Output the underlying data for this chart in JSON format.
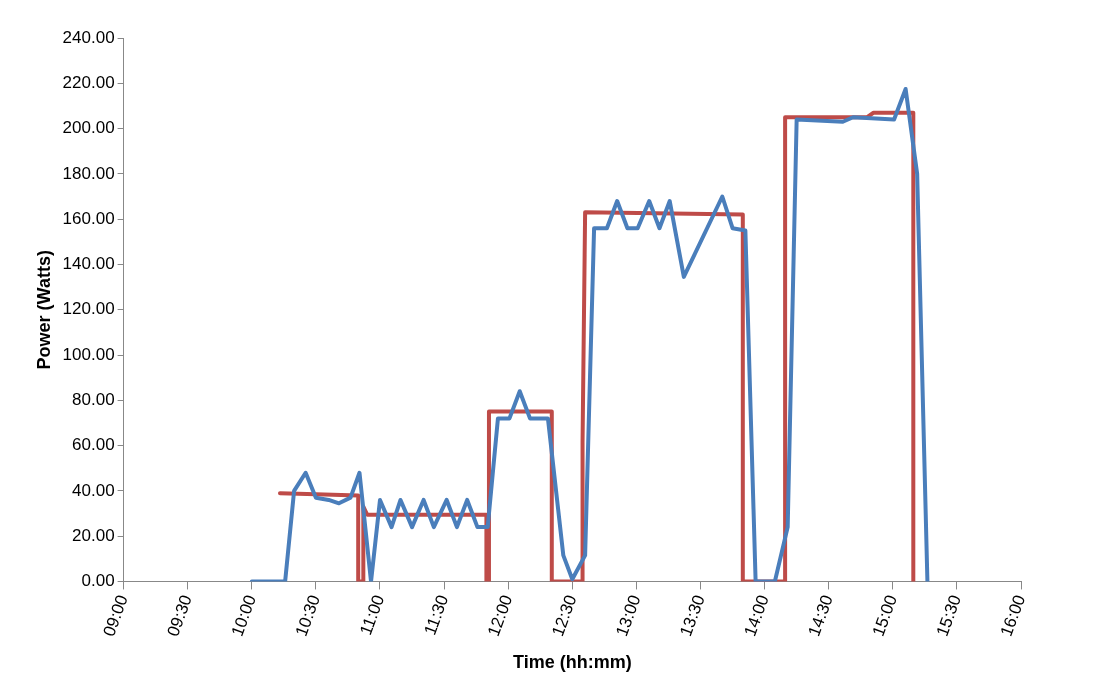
{
  "chart_data": {
    "type": "line",
    "xlabel": "Time (hh:mm)",
    "ylabel": "Power (Watts)",
    "xlim": [
      9,
      16
    ],
    "ylim": [
      0,
      240
    ],
    "xticks": [
      {
        "value": 9,
        "label": "09:00"
      },
      {
        "value": 9.5,
        "label": "09:30"
      },
      {
        "value": 10,
        "label": "10:00"
      },
      {
        "value": 10.5,
        "label": "10:30"
      },
      {
        "value": 11,
        "label": "11:00"
      },
      {
        "value": 11.5,
        "label": "11:30"
      },
      {
        "value": 12,
        "label": "12:00"
      },
      {
        "value": 12.5,
        "label": "12:30"
      },
      {
        "value": 13,
        "label": "13:00"
      },
      {
        "value": 13.5,
        "label": "13:30"
      },
      {
        "value": 14,
        "label": "14:00"
      },
      {
        "value": 14.5,
        "label": "14:30"
      },
      {
        "value": 15,
        "label": "15:00"
      },
      {
        "value": 15.5,
        "label": "15:30"
      },
      {
        "value": 16,
        "label": "16:00"
      }
    ],
    "yticks": [
      {
        "value": 0,
        "label": "0.00"
      },
      {
        "value": 20,
        "label": "20.00"
      },
      {
        "value": 40,
        "label": "40.00"
      },
      {
        "value": 60,
        "label": "60.00"
      },
      {
        "value": 80,
        "label": "80.00"
      },
      {
        "value": 100,
        "label": "100.00"
      },
      {
        "value": 120,
        "label": "120.00"
      },
      {
        "value": 140,
        "label": "140.00"
      },
      {
        "value": 160,
        "label": "160.00"
      },
      {
        "value": 180,
        "label": "180.00"
      },
      {
        "value": 200,
        "label": "200.00"
      },
      {
        "value": 220,
        "label": "220.00"
      },
      {
        "value": 240,
        "label": "240.00"
      }
    ],
    "grid": false,
    "legend": false,
    "marker": "none",
    "line_style": "solid",
    "series": [
      {
        "color": "#4a7ebb",
        "x": [
          10,
          10.26,
          10.33,
          10.42,
          10.5,
          10.6,
          10.68,
          10.77,
          10.84,
          10.93,
          11,
          11.09,
          11.16,
          11.25,
          11.34,
          11.42,
          11.52,
          11.6,
          11.68,
          11.76,
          11.84,
          11.92,
          12.01,
          12.09,
          12.17,
          12.31,
          12.43,
          12.5,
          12.6,
          12.67,
          12.77,
          12.85,
          12.93,
          13.01,
          13.1,
          13.18,
          13.26,
          13.37,
          13.67,
          13.75,
          13.85,
          13.93,
          14.08,
          14.18,
          14.25,
          14.61,
          14.69,
          15.01,
          15.1,
          15.19,
          15.27
        ],
        "values": [
          0,
          0,
          40,
          48,
          37,
          36,
          34.5,
          37,
          48,
          0,
          36,
          24,
          36,
          24,
          36,
          24,
          36,
          24,
          36,
          24,
          24,
          72,
          72,
          84,
          72,
          72,
          11.5,
          1,
          11.5,
          156,
          156,
          168,
          156,
          156,
          168,
          156,
          168,
          134.5,
          170,
          156,
          155,
          0,
          0,
          24,
          204,
          203,
          205,
          204,
          217.5,
          180,
          0
        ]
      },
      {
        "color": "#be4b48",
        "x": [
          10.22,
          10.5,
          10.83,
          10.83,
          10.87,
          10.87,
          10.9,
          11.83,
          11.83,
          11.85,
          11.85,
          12.34,
          12.34,
          12.58,
          12.58,
          12.6,
          13.83,
          13.83,
          14.16,
          14.16,
          14.8,
          14.85,
          15.16,
          15.16
        ],
        "values": [
          39,
          38.5,
          38,
          0,
          0,
          33,
          29.5,
          29.5,
          0,
          0,
          75,
          75,
          0,
          0,
          61.5,
          163,
          162,
          0,
          0,
          205,
          205,
          207,
          207,
          0
        ]
      }
    ]
  }
}
